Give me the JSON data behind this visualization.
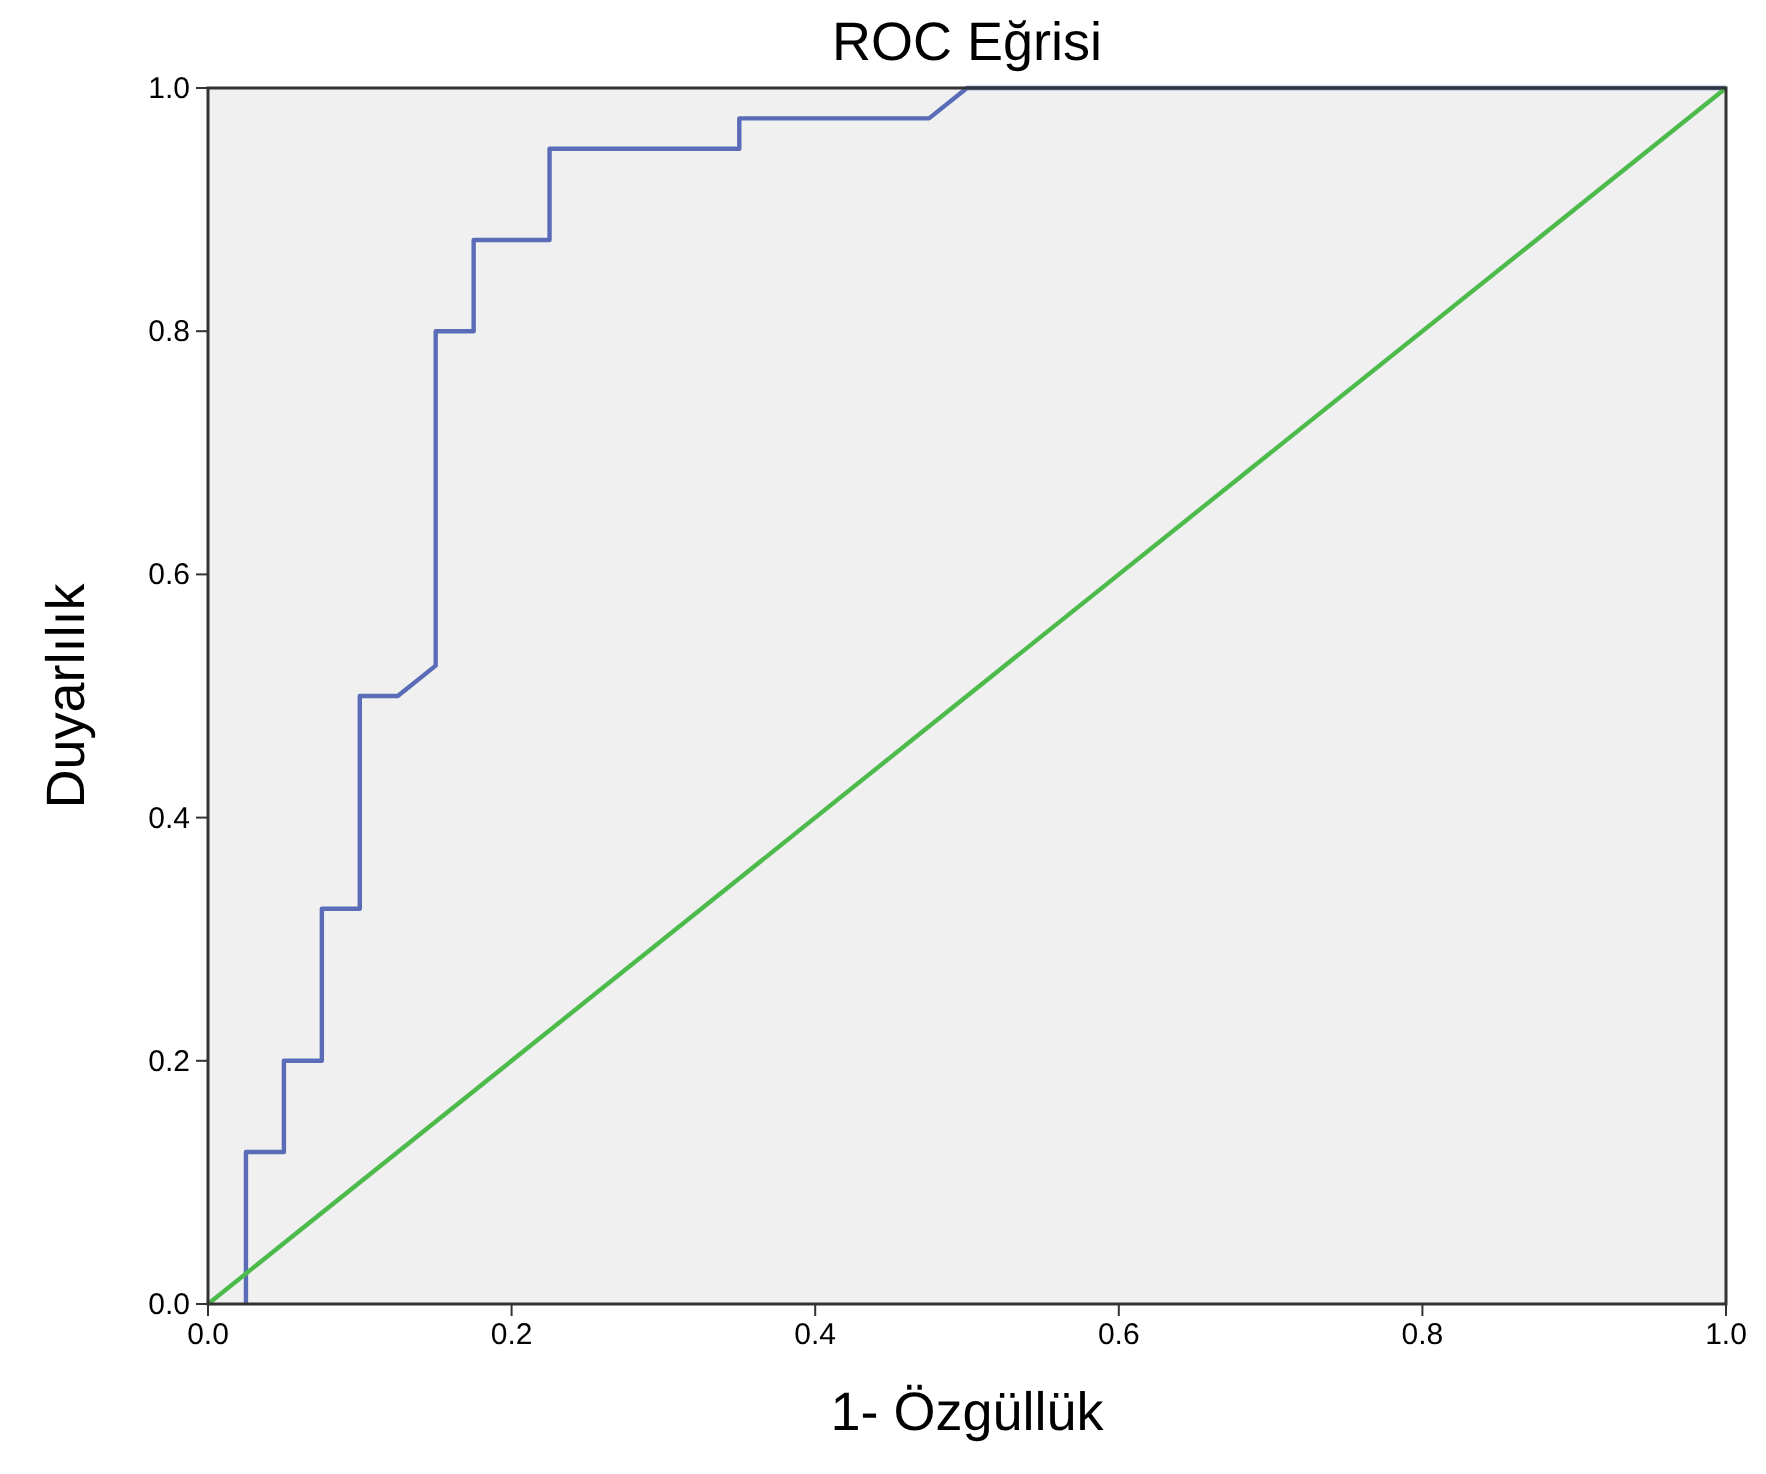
{
  "chart_data": {
    "type": "line",
    "title": "ROC Eğrisi",
    "xlabel": "1- Özgüllük",
    "ylabel": "Duyarlılık",
    "xlim": [
      0,
      1
    ],
    "ylim": [
      0,
      1
    ],
    "xticks": [
      {
        "value": 0,
        "label": "0.0"
      },
      {
        "value": 0.2,
        "label": "0.2"
      },
      {
        "value": 0.4,
        "label": "0.4"
      },
      {
        "value": 0.6,
        "label": "0.6"
      },
      {
        "value": 0.8,
        "label": "0.8"
      },
      {
        "value": 1,
        "label": "1.0"
      }
    ],
    "yticks": [
      {
        "value": 0,
        "label": "0.0"
      },
      {
        "value": 0.2,
        "label": "0.2"
      },
      {
        "value": 0.4,
        "label": "0.4"
      },
      {
        "value": 0.6,
        "label": "0.6"
      },
      {
        "value": 0.8,
        "label": "0.8"
      },
      {
        "value": 1,
        "label": "1.0"
      }
    ],
    "grid": false,
    "marker": "none",
    "line_style": "solid",
    "series": [
      {
        "color": "#5a6cb8",
        "x": [
          0.025,
          0.025,
          0.05,
          0.05,
          0.075,
          0.075,
          0.1,
          0.1,
          0.125,
          0.15,
          0.15,
          0.175,
          0.175,
          0.225,
          0.225,
          0.35,
          0.35,
          0.475,
          0.5,
          1
        ],
        "values": [
          0,
          0.125,
          0.125,
          0.2,
          0.2,
          0.325,
          0.325,
          0.5,
          0.5,
          0.525,
          0.8,
          0.8,
          0.875,
          0.875,
          0.95,
          0.95,
          0.975,
          0.975,
          1,
          1
        ]
      },
      {
        "color": "#4cbb4c",
        "x": [
          0,
          1
        ],
        "values": [
          0,
          1
        ]
      }
    ]
  }
}
